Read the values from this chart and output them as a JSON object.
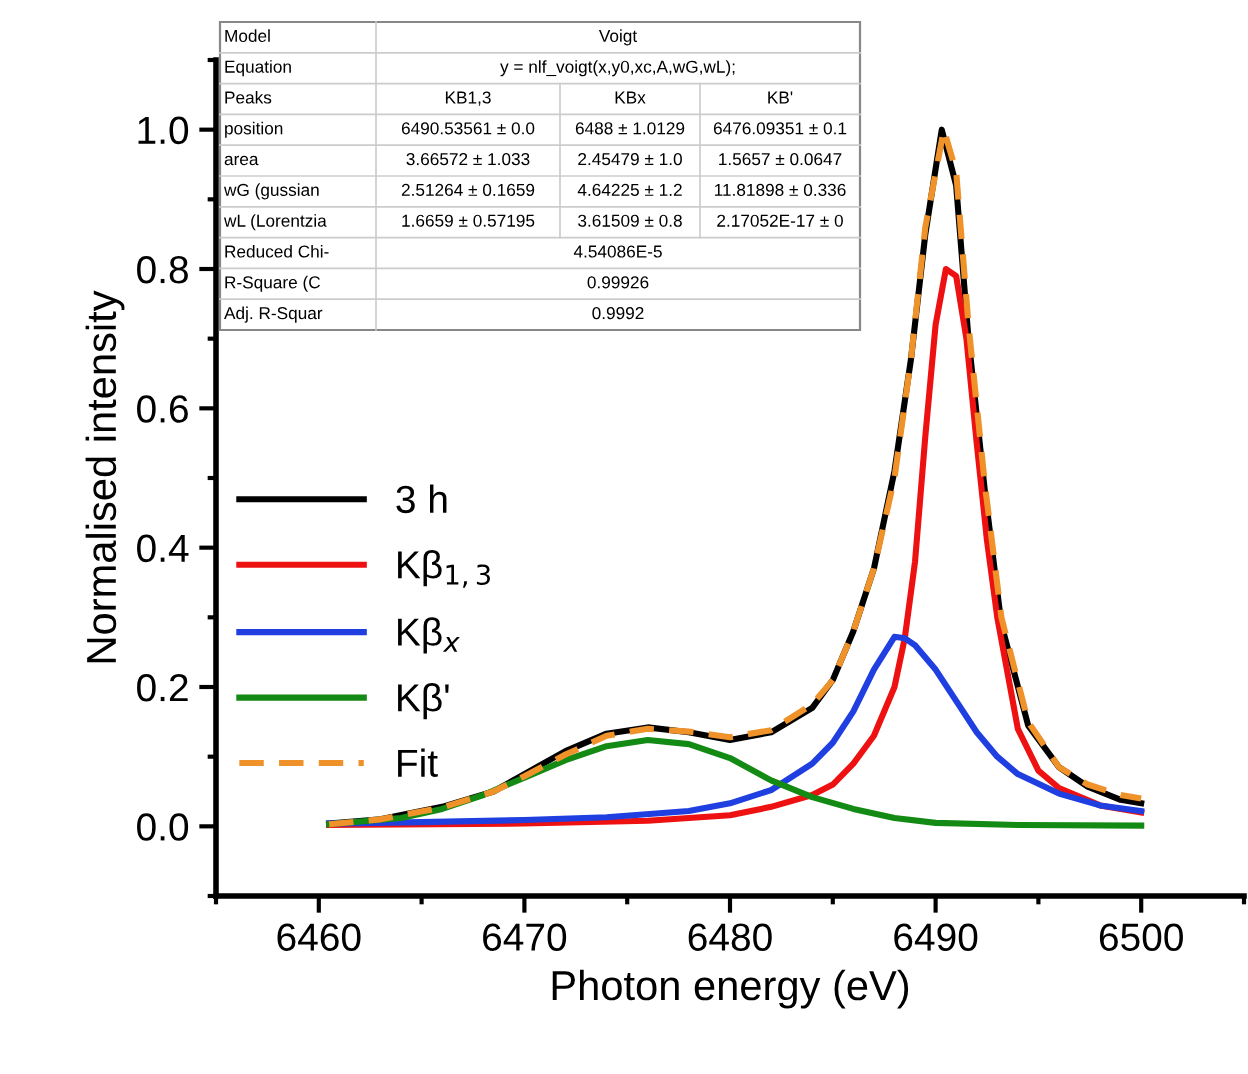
{
  "chart_data": {
    "type": "line",
    "xlabel": "Photon energy (eV)",
    "ylabel": "Normalised intensity",
    "xlim": [
      6455,
      6505
    ],
    "xticks": [
      6460,
      6470,
      6480,
      6490,
      6500
    ],
    "ylim": [
      -0.1,
      1.1
    ],
    "yticks": [
      {
        "value": 0,
        "label": "0.0"
      },
      0.2,
      0.4,
      0.6,
      0.8,
      {
        "value": 1,
        "label": "1.0"
      }
    ],
    "grid": false,
    "legend": "left",
    "line_style": "solid",
    "series": [
      {
        "name": "3 h",
        "color": "#000000",
        "x": [
          6460.5,
          6463,
          6466,
          6468.5,
          6470,
          6472,
          6474,
          6476,
          6478,
          6480,
          6482,
          6484,
          6485,
          6486,
          6487,
          6488,
          6488.8,
          6489.5,
          6490.3,
          6491,
          6491.6,
          6492.4,
          6493.2,
          6494.5,
          6496,
          6497.4,
          6499,
          6500
        ],
        "values": [
          0.004,
          0.01,
          0.028,
          0.05,
          0.075,
          0.108,
          0.133,
          0.142,
          0.135,
          0.124,
          0.135,
          0.17,
          0.21,
          0.28,
          0.37,
          0.51,
          0.67,
          0.85,
          1.0,
          0.92,
          0.7,
          0.48,
          0.29,
          0.145,
          0.085,
          0.057,
          0.038,
          0.033
        ]
      },
      {
        "name": "Kβ$_{1,3}$",
        "color": "#ee1111",
        "x": [
          6460.5,
          6470,
          6476,
          6480,
          6482,
          6484,
          6485,
          6486,
          6487,
          6488,
          6488.5,
          6489,
          6489.5,
          6490,
          6490.5,
          6491,
          6491.5,
          6492,
          6492.5,
          6493,
          6494,
          6495,
          6496,
          6498,
          6500
        ],
        "values": [
          0.002,
          0.004,
          0.008,
          0.016,
          0.028,
          0.045,
          0.06,
          0.09,
          0.13,
          0.2,
          0.27,
          0.38,
          0.56,
          0.72,
          0.8,
          0.79,
          0.7,
          0.55,
          0.41,
          0.3,
          0.14,
          0.08,
          0.055,
          0.03,
          0.02
        ]
      },
      {
        "name": "Kβ$_{x}$",
        "color": "#1f3fe0",
        "x": [
          6460.5,
          6465,
          6470,
          6474,
          6478,
          6480,
          6482,
          6484,
          6485,
          6486,
          6487,
          6488,
          6488.5,
          6489,
          6490,
          6491,
          6492,
          6493,
          6494,
          6496,
          6498,
          6500
        ],
        "values": [
          0.004,
          0.006,
          0.009,
          0.013,
          0.022,
          0.033,
          0.052,
          0.09,
          0.12,
          0.165,
          0.225,
          0.272,
          0.27,
          0.26,
          0.225,
          0.18,
          0.135,
          0.1,
          0.075,
          0.047,
          0.03,
          0.022
        ]
      },
      {
        "name": "Kβ'",
        "color": "#138a13",
        "x": [
          6460.5,
          6464,
          6466,
          6468,
          6470,
          6472,
          6474,
          6476,
          6478,
          6480,
          6482,
          6484,
          6486,
          6488,
          6490,
          6494,
          6500
        ],
        "values": [
          0.003,
          0.012,
          0.025,
          0.045,
          0.07,
          0.095,
          0.115,
          0.124,
          0.118,
          0.098,
          0.066,
          0.042,
          0.025,
          0.012,
          0.005,
          0.002,
          0.001
        ]
      },
      {
        "name": "Fit",
        "color": "#f0922a",
        "line_style": "dashed",
        "x": [
          6460.5,
          6463,
          6466,
          6468.5,
          6470,
          6472,
          6474,
          6476,
          6478,
          6480,
          6482,
          6484,
          6485,
          6486,
          6487,
          6488,
          6488.8,
          6489.5,
          6490.4,
          6491,
          6491.6,
          6492.4,
          6493.2,
          6494.5,
          6496,
          6497.4,
          6499,
          6500
        ],
        "values": [
          0.003,
          0.01,
          0.027,
          0.05,
          0.072,
          0.103,
          0.13,
          0.14,
          0.136,
          0.128,
          0.138,
          0.175,
          0.21,
          0.28,
          0.37,
          0.5,
          0.67,
          0.86,
          1.0,
          0.94,
          0.72,
          0.49,
          0.3,
          0.15,
          0.085,
          0.06,
          0.045,
          0.04
        ]
      }
    ],
    "annotations": [
      "Model",
      "Voigt",
      "Equation",
      "y = nlf_voigt(x,y0,xc,A,wG,wL);",
      "Peaks",
      "KB1,3",
      "KBx",
      "KB'",
      "position",
      "6490.53561 ± 0.0",
      "6488 ± 1.0129",
      "6476.09351 ± 0.1",
      "area",
      "3.66572 ± 1.033",
      "2.45479 ± 1.0",
      "1.5657 ± 0.0647",
      "wG (gussian",
      "2.51264 ± 0.1659",
      "4.64225 ± 1.2",
      "11.81898 ± 0.336",
      "wL (Lorentzia",
      "1.6659 ± 0.57195",
      "3.61509 ± 0.8",
      "2.17052E-17 ± 0",
      "Reduced Chi-",
      "4.54086E-5",
      "R-Square (C",
      "0.99926",
      "Adj. R-Squar",
      "0.9992"
    ]
  }
}
